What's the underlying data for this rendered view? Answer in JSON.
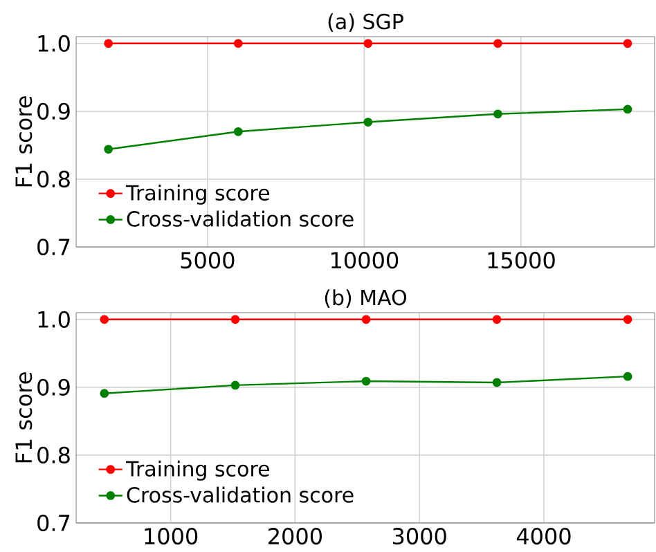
{
  "chart_data": [
    {
      "type": "line",
      "title": "(a) SGP",
      "ylabel": "F1 score",
      "x": [
        1840,
        5980,
        10120,
        14260,
        18400
      ],
      "series": [
        {
          "name": "Training score",
          "color": "#ff0000",
          "values": [
            1.0,
            1.0,
            1.0,
            1.0,
            1.0
          ]
        },
        {
          "name": "Cross-validation score",
          "color": "#008000",
          "values": [
            0.844,
            0.87,
            0.884,
            0.896,
            0.903
          ]
        }
      ],
      "xlim": [
        810,
        19260
      ],
      "ylim": [
        0.7,
        1.01
      ],
      "xticks": [
        5000,
        10000,
        15000
      ],
      "yticks": [
        0.7,
        0.8,
        0.9,
        {
          "value": 1.0,
          "label": "1.0"
        }
      ],
      "grid": true,
      "legend": "bottom left",
      "marker": "circle",
      "line_style": "solid"
    },
    {
      "type": "line",
      "title": "(b) MAO",
      "ylabel": "F1 score",
      "x": [
        467,
        1519,
        2571,
        3622,
        4674
      ],
      "series": [
        {
          "name": "Training score",
          "color": "#ff0000",
          "values": [
            1.0,
            1.0,
            1.0,
            1.0,
            1.0
          ]
        },
        {
          "name": "Cross-validation score",
          "color": "#008000",
          "values": [
            0.891,
            0.903,
            0.909,
            0.907,
            0.916
          ]
        }
      ],
      "xlim": [
        240,
        4890
      ],
      "ylim": [
        0.7,
        1.01
      ],
      "xticks": [
        1000,
        2000,
        3000,
        4000
      ],
      "yticks": [
        0.7,
        0.8,
        0.9,
        {
          "value": 1.0,
          "label": "1.0"
        }
      ],
      "grid": true,
      "legend": "bottom left",
      "marker": "circle",
      "line_style": "solid"
    }
  ]
}
